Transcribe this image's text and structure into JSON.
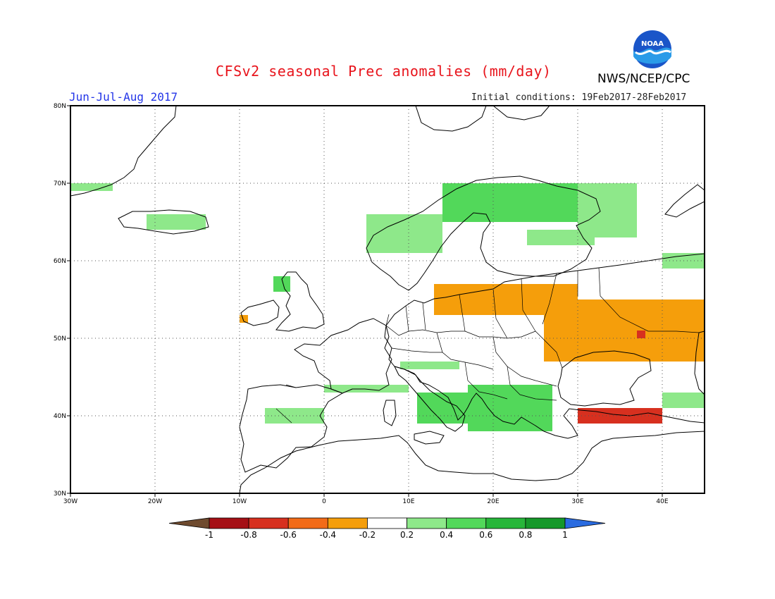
{
  "header": {
    "title": "CFSv2 seasonal Prec anomalies (mm/day)",
    "period": "Jun-Jul-Aug 2017",
    "initial_conditions": "Initial conditions: 19Feb2017-28Feb2017",
    "organization": "NWS/NCEP/CPC",
    "logo_text": "NOAA"
  },
  "map": {
    "region": "Europe",
    "lon_range": [
      -30,
      45
    ],
    "lat_range": [
      30,
      80
    ],
    "lat_ticks": [
      "30N",
      "40N",
      "50N",
      "60N",
      "70N",
      "80N"
    ],
    "lon_ticks": [
      "30W",
      "20W",
      "10W",
      "0",
      "10E",
      "20E",
      "30E",
      "40E"
    ],
    "grid": true
  },
  "colorbar": {
    "labels": [
      "-1",
      "-0.8",
      "-0.6",
      "-0.4",
      "-0.2",
      "0.2",
      "0.4",
      "0.6",
      "0.8",
      "1"
    ],
    "colors": [
      "#6e4a2e",
      "#a50f15",
      "#d7301f",
      "#f26b18",
      "#f59e0b",
      "#ffffff",
      "#8ee88a",
      "#52d85a",
      "#27b63a",
      "#15982a",
      "#2a6be0"
    ]
  },
  "anomaly_regions": [
    {
      "name": "north-svalbard-west",
      "lon": [
        -30,
        -25
      ],
      "lat": [
        69,
        70
      ],
      "level": "0.2"
    },
    {
      "name": "iceland",
      "lon": [
        -21,
        -14
      ],
      "lat": [
        64,
        66
      ],
      "level": "0.2"
    },
    {
      "name": "norway-coast",
      "lon": [
        5,
        14
      ],
      "lat": [
        61,
        66
      ],
      "level": "0.2"
    },
    {
      "name": "scandinavia-north",
      "lon": [
        14,
        32
      ],
      "lat": [
        65,
        70
      ],
      "level": "0.4"
    },
    {
      "name": "finland-south",
      "lon": [
        24,
        32
      ],
      "lat": [
        62,
        64
      ],
      "level": "0.2"
    },
    {
      "name": "kola",
      "lon": [
        30,
        37
      ],
      "lat": [
        63,
        70
      ],
      "level": "0.2"
    },
    {
      "name": "northwest-russia",
      "lon": [
        40,
        45
      ],
      "lat": [
        59,
        61
      ],
      "level": "0.2"
    },
    {
      "name": "scotland",
      "lon": [
        -6,
        -4
      ],
      "lat": [
        56,
        58
      ],
      "level": "0.4"
    },
    {
      "name": "ireland-west",
      "lon": [
        -10,
        -9
      ],
      "lat": [
        52,
        53
      ],
      "level": "-0.2"
    },
    {
      "name": "baltic-south",
      "lon": [
        13,
        30
      ],
      "lat": [
        53,
        57
      ],
      "level": "-0.2"
    },
    {
      "name": "ukraine-russia",
      "lon": [
        26,
        45
      ],
      "lat": [
        47,
        55
      ],
      "level": "-0.2"
    },
    {
      "name": "ukraine-hotspot",
      "lon": [
        37,
        38
      ],
      "lat": [
        50,
        51
      ],
      "level": "-0.6"
    },
    {
      "name": "alps",
      "lon": [
        9,
        16
      ],
      "lat": [
        46,
        47
      ],
      "level": "0.2"
    },
    {
      "name": "pyrenees-gulf-lion",
      "lon": [
        0,
        10
      ],
      "lat": [
        43,
        44
      ],
      "level": "0.2"
    },
    {
      "name": "italy",
      "lon": [
        11,
        17
      ],
      "lat": [
        39,
        43
      ],
      "level": "0.4"
    },
    {
      "name": "spain-central",
      "lon": [
        -7,
        0
      ],
      "lat": [
        39,
        41
      ],
      "level": "0.2"
    },
    {
      "name": "balkans",
      "lon": [
        17,
        27
      ],
      "lat": [
        38,
        44
      ],
      "level": "0.4"
    },
    {
      "name": "turkey-north",
      "lon": [
        30,
        40
      ],
      "lat": [
        39,
        41
      ],
      "level": "-0.6"
    },
    {
      "name": "caucasus",
      "lon": [
        40,
        45
      ],
      "lat": [
        41,
        43
      ],
      "level": "0.2"
    }
  ]
}
